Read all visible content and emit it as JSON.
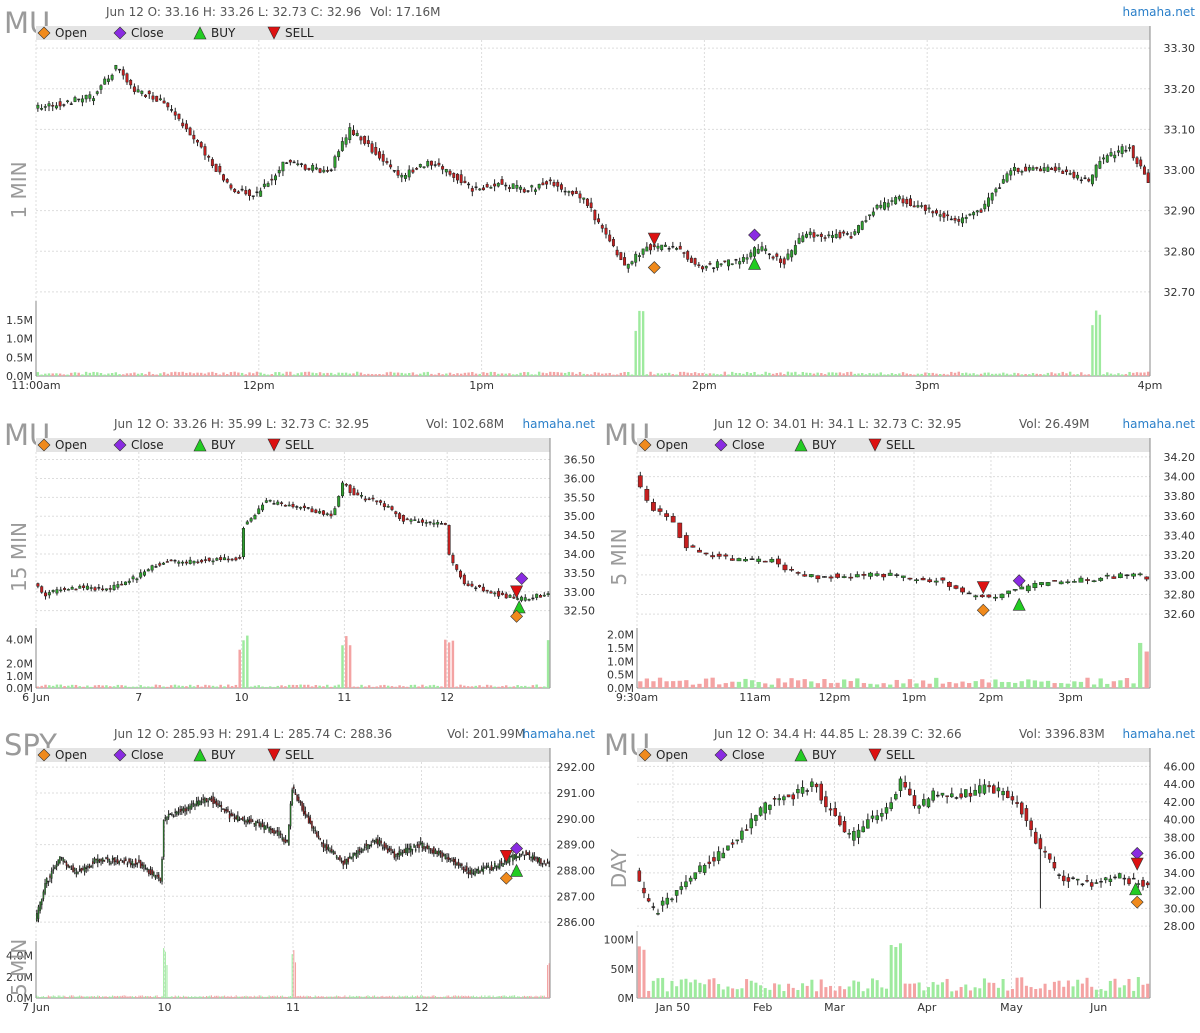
{
  "colors": {
    "up": "#2ea02e",
    "down": "#c51f1f",
    "doji": "#222222",
    "vol_up": "#9eea9e",
    "vol_down": "#f4a3a3",
    "open_marker": "#f08a1c",
    "close_marker": "#8a2be2",
    "buy_marker": "#22cc22",
    "sell_marker": "#dd1111",
    "legend_band": "#e4e4e4",
    "grid": "#dddddd",
    "brand": "#2a7fc9"
  },
  "chart_data": [
    {
      "id": "mu-1min",
      "type": "candlestick",
      "symbol": "MU",
      "timeframe": "1 MIN",
      "info": "Jun 12 O: 33.16 H: 33.26 L: 32.73 C: 32.96",
      "volume_text": "Vol: 17.16M",
      "brand": "hamaha.net",
      "legend": [
        "Open",
        "Close",
        "BUY",
        "SELL"
      ],
      "ylim": [
        32.68,
        33.32
      ],
      "yticks": [
        "33.30",
        "33.20",
        "33.10",
        "33.00",
        "32.90",
        "32.80",
        "32.70"
      ],
      "ytick_values": [
        33.3,
        33.2,
        33.1,
        33.0,
        32.9,
        32.8,
        32.7
      ],
      "vol_ticks": [
        "1.5M",
        "1.0M",
        "0.5M",
        "0.0M"
      ],
      "vol_tick_values": [
        1.5,
        1.0,
        0.5,
        0.0
      ],
      "vol_max": 1.9,
      "xticks": [
        "11:00am",
        "12pm",
        "1pm",
        "2pm",
        "3pm",
        "4pm"
      ],
      "xtick_pos": [
        0,
        0.2,
        0.4,
        0.6,
        0.8,
        1.0
      ],
      "n_bars": 300,
      "anchors": [
        [
          0,
          33.15
        ],
        [
          0.06,
          33.18
        ],
        [
          0.085,
          33.26
        ],
        [
          0.1,
          33.2
        ],
        [
          0.13,
          33.17
        ],
        [
          0.17,
          33.05
        ],
        [
          0.2,
          32.95
        ],
        [
          0.225,
          32.94
        ],
        [
          0.255,
          33.02
        ],
        [
          0.29,
          33.0
        ],
        [
          0.3,
          33.0
        ],
        [
          0.32,
          33.1
        ],
        [
          0.335,
          33.07
        ],
        [
          0.37,
          32.98
        ],
        [
          0.4,
          33.02
        ],
        [
          0.43,
          32.98
        ],
        [
          0.445,
          32.95
        ],
        [
          0.47,
          32.97
        ],
        [
          0.5,
          32.95
        ],
        [
          0.52,
          32.97
        ],
        [
          0.54,
          32.95
        ],
        [
          0.56,
          32.92
        ],
        [
          0.6,
          32.76
        ],
        [
          0.62,
          32.81
        ],
        [
          0.65,
          32.81
        ],
        [
          0.675,
          32.76
        ],
        [
          0.7,
          32.77
        ],
        [
          0.72,
          32.78
        ],
        [
          0.735,
          32.81
        ],
        [
          0.76,
          32.77
        ],
        [
          0.78,
          32.84
        ],
        [
          0.83,
          32.84
        ],
        [
          0.85,
          32.9
        ],
        [
          0.875,
          32.93
        ],
        [
          0.9,
          32.91
        ],
        [
          0.935,
          32.87
        ],
        [
          0.96,
          32.9
        ],
        [
          0.99,
          33.0
        ],
        [
          1.0,
          33.0
        ],
        [
          1.04,
          33.0
        ],
        [
          1.07,
          32.97
        ],
        [
          1.08,
          33.02
        ],
        [
          1.11,
          33.06
        ],
        [
          1.13,
          32.97
        ]
      ],
      "noise": 0.008,
      "spike_at": [
        0.54,
        0.95
      ],
      "vol_base": 0.09,
      "markers": [
        {
          "kind": "sell",
          "x": 0.555,
          "price": 32.83
        },
        {
          "kind": "open",
          "x": 0.555,
          "price": 32.76
        },
        {
          "kind": "close",
          "x": 0.645,
          "price": 32.84
        },
        {
          "kind": "buy",
          "x": 0.645,
          "price": 32.77
        }
      ]
    },
    {
      "id": "mu-15min",
      "type": "candlestick",
      "symbol": "MU",
      "timeframe": "15 MIN",
      "info": "Jun 12 O: 33.26 H: 35.99 L: 32.73 C: 32.95",
      "volume_text": "Vol: 102.68M",
      "brand": "hamaha.net",
      "legend": [
        "Open",
        "Close",
        "BUY",
        "SELL"
      ],
      "ylim": [
        32.2,
        36.7
      ],
      "yticks": [
        "36.50",
        "36.00",
        "35.50",
        "35.00",
        "34.50",
        "34.00",
        "33.50",
        "33.00",
        "32.50"
      ],
      "ytick_values": [
        36.5,
        36.0,
        35.5,
        35.0,
        34.5,
        34.0,
        33.5,
        33.0,
        32.5
      ],
      "vol_ticks": [
        "4.0M",
        "2.0M",
        "1.0M",
        "0.0M"
      ],
      "vol_tick_values": [
        4.0,
        2.0,
        1.0,
        0.0
      ],
      "vol_max": 4.6,
      "xticks": [
        "6 Jun",
        "7",
        "10",
        "11",
        "12"
      ],
      "xtick_pos": [
        0,
        0.2,
        0.4,
        0.6,
        0.8
      ],
      "n_bars": 135,
      "anchors": [
        [
          0,
          33.2
        ],
        [
          0.02,
          32.9
        ],
        [
          0.05,
          33.1
        ],
        [
          0.15,
          33.1
        ],
        [
          0.2,
          33.4
        ],
        [
          0.25,
          33.8
        ],
        [
          0.3,
          33.8
        ],
        [
          0.385,
          33.9
        ],
        [
          0.4,
          33.9
        ],
        [
          0.405,
          34.7
        ],
        [
          0.45,
          35.4
        ],
        [
          0.5,
          35.3
        ],
        [
          0.58,
          35.0
        ],
        [
          0.6,
          35.9
        ],
        [
          0.62,
          35.6
        ],
        [
          0.68,
          35.3
        ],
        [
          0.72,
          34.9
        ],
        [
          0.8,
          34.8
        ],
        [
          0.805,
          34.0
        ],
        [
          0.84,
          33.2
        ],
        [
          0.9,
          32.95
        ],
        [
          0.95,
          32.8
        ],
        [
          1.0,
          32.95
        ]
      ],
      "noise": 0.06,
      "spike_at": [
        0.4,
        0.6,
        0.8,
        0.998
      ],
      "vol_base": 0.22,
      "markers": [
        {
          "kind": "close",
          "x": 0.945,
          "price": 33.35
        },
        {
          "kind": "sell",
          "x": 0.935,
          "price": 33.0
        },
        {
          "kind": "buy",
          "x": 0.94,
          "price": 32.6
        },
        {
          "kind": "open",
          "x": 0.935,
          "price": 32.35
        }
      ]
    },
    {
      "id": "mu-5min",
      "type": "candlestick",
      "symbol": "MU",
      "timeframe": "5 MIN",
      "info": "Jun 12 O: 34.01 H: 34.1 L: 32.73 C: 32.95",
      "volume_text": "Vol: 26.49M",
      "brand": "hamaha.net",
      "legend": [
        "Open",
        "Close",
        "BUY",
        "SELL"
      ],
      "ylim": [
        32.52,
        34.25
      ],
      "yticks": [
        "34.20",
        "34.00",
        "33.80",
        "33.60",
        "33.40",
        "33.20",
        "33.00",
        "32.80",
        "32.60"
      ],
      "ytick_values": [
        34.2,
        34.0,
        33.8,
        33.6,
        33.4,
        33.2,
        33.0,
        32.8,
        32.6
      ],
      "vol_ticks": [
        "2.0M",
        "1.5M",
        "1.0M",
        "0.5M",
        "0.0M"
      ],
      "vol_tick_values": [
        2.0,
        1.5,
        1.0,
        0.5,
        0.0
      ],
      "vol_max": 2.1,
      "xticks": [
        "9:30am",
        "11am",
        "12pm",
        "1pm",
        "2pm",
        "3pm"
      ],
      "xtick_pos": [
        0,
        0.23,
        0.385,
        0.54,
        0.69,
        0.845
      ],
      "n_bars": 78,
      "anchors": [
        [
          0,
          34.0
        ],
        [
          0.03,
          33.7
        ],
        [
          0.07,
          33.6
        ],
        [
          0.1,
          33.3
        ],
        [
          0.15,
          33.2
        ],
        [
          0.2,
          33.15
        ],
        [
          0.27,
          33.15
        ],
        [
          0.3,
          33.05
        ],
        [
          0.35,
          32.98
        ],
        [
          0.45,
          33.0
        ],
        [
          0.5,
          33.0
        ],
        [
          0.55,
          32.95
        ],
        [
          0.6,
          32.95
        ],
        [
          0.65,
          32.8
        ],
        [
          0.7,
          32.78
        ],
        [
          0.75,
          32.85
        ],
        [
          0.8,
          32.92
        ],
        [
          0.88,
          32.95
        ],
        [
          0.96,
          33.0
        ],
        [
          1.0,
          32.98
        ]
      ],
      "noise": 0.025,
      "spike_at": [
        0.99
      ],
      "vol_base": 0.3,
      "markers": [
        {
          "kind": "sell",
          "x": 0.675,
          "price": 32.87
        },
        {
          "kind": "open",
          "x": 0.675,
          "price": 32.64
        },
        {
          "kind": "close",
          "x": 0.745,
          "price": 32.94
        },
        {
          "kind": "buy",
          "x": 0.745,
          "price": 32.7
        }
      ]
    },
    {
      "id": "spy-5min",
      "type": "candlestick",
      "symbol": "SPY",
      "timeframe": "5 MIN",
      "info": "Jun 12 O: 285.93 H: 291.4 L: 285.74 C: 288.36",
      "volume_text": "Vol: 201.99M",
      "brand": "hamaha.net",
      "legend": [
        "Open",
        "Close",
        "BUY",
        "SELL"
      ],
      "ylim": [
        285.5,
        292.2
      ],
      "yticks": [
        "292.00",
        "291.00",
        "290.00",
        "289.00",
        "288.00",
        "287.00",
        "286.00"
      ],
      "ytick_values": [
        292,
        291,
        290,
        289,
        288,
        287,
        286
      ],
      "vol_ticks": [
        "4.0M",
        "2.0M",
        "0.0M"
      ],
      "vol_tick_values": [
        4.0,
        2.0,
        0.0
      ],
      "vol_max": 5.0,
      "xticks": [
        "7 Jun",
        "10",
        "11",
        "12"
      ],
      "xtick_pos": [
        0,
        0.25,
        0.5,
        0.75
      ],
      "n_bars": 312,
      "anchors": [
        [
          0,
          286.0
        ],
        [
          0.02,
          287.5
        ],
        [
          0.05,
          288.5
        ],
        [
          0.08,
          287.9
        ],
        [
          0.12,
          288.4
        ],
        [
          0.2,
          288.3
        ],
        [
          0.245,
          287.6
        ],
        [
          0.25,
          290.0
        ],
        [
          0.28,
          290.3
        ],
        [
          0.34,
          290.8
        ],
        [
          0.38,
          290.1
        ],
        [
          0.43,
          289.8
        ],
        [
          0.47,
          289.5
        ],
        [
          0.49,
          289.0
        ],
        [
          0.5,
          291.2
        ],
        [
          0.53,
          290.0
        ],
        [
          0.56,
          289.0
        ],
        [
          0.6,
          288.3
        ],
        [
          0.66,
          289.2
        ],
        [
          0.7,
          288.6
        ],
        [
          0.75,
          289.0
        ],
        [
          0.8,
          288.5
        ],
        [
          0.85,
          287.9
        ],
        [
          0.9,
          288.2
        ],
        [
          0.95,
          288.7
        ],
        [
          1.0,
          288.2
        ]
      ],
      "noise": 0.12,
      "spike_at": [
        0.25,
        0.5,
        0.998
      ],
      "vol_base": 0.2,
      "markers": [
        {
          "kind": "sell",
          "x": 0.915,
          "price": 288.55
        },
        {
          "kind": "close",
          "x": 0.935,
          "price": 288.85
        },
        {
          "kind": "buy",
          "x": 0.935,
          "price": 288.0
        },
        {
          "kind": "open",
          "x": 0.915,
          "price": 287.7
        }
      ]
    },
    {
      "id": "mu-day",
      "type": "candlestick",
      "symbol": "MU",
      "timeframe": "DAY",
      "info": "Jun 12 O: 34.4 H: 44.85 L: 28.39 C: 32.66",
      "volume_text": "Vol: 3396.83M",
      "brand": "hamaha.net",
      "legend": [
        "Open",
        "Close",
        "BUY",
        "SELL"
      ],
      "ylim": [
        27.0,
        46.5
      ],
      "yticks": [
        "46.00",
        "44.00",
        "42.00",
        "40.00",
        "38.00",
        "36.00",
        "34.00",
        "32.00",
        "30.00",
        "28.00"
      ],
      "ytick_values": [
        46,
        44,
        42,
        40,
        38,
        36,
        34,
        32,
        30,
        28
      ],
      "vol_ticks": [
        "100M",
        "50M",
        "0M"
      ],
      "vol_tick_values": [
        100,
        50,
        0
      ],
      "vol_max": 108,
      "xticks": [
        "Jan 50",
        "Feb",
        "Mar",
        "Apr",
        "May",
        "Jun"
      ],
      "xtick_pos": [
        0.07,
        0.245,
        0.385,
        0.565,
        0.73,
        0.9
      ],
      "n_bars": 110,
      "anchors": [
        [
          0,
          34.0
        ],
        [
          0.02,
          31.0
        ],
        [
          0.04,
          29.5
        ],
        [
          0.06,
          31.0
        ],
        [
          0.09,
          32.0
        ],
        [
          0.12,
          34.0
        ],
        [
          0.16,
          36.0
        ],
        [
          0.2,
          38.0
        ],
        [
          0.23,
          40.0
        ],
        [
          0.26,
          42.0
        ],
        [
          0.3,
          42.5
        ],
        [
          0.35,
          44.0
        ],
        [
          0.38,
          41.0
        ],
        [
          0.42,
          38.0
        ],
        [
          0.46,
          40.0
        ],
        [
          0.5,
          42.0
        ],
        [
          0.52,
          44.5
        ],
        [
          0.55,
          41.0
        ],
        [
          0.58,
          43.0
        ],
        [
          0.62,
          42.5
        ],
        [
          0.68,
          43.5
        ],
        [
          0.72,
          43.0
        ],
        [
          0.75,
          41.5
        ],
        [
          0.78,
          38.0
        ],
        [
          0.82,
          34.0
        ],
        [
          0.86,
          33.0
        ],
        [
          0.9,
          32.5
        ],
        [
          0.94,
          34.0
        ],
        [
          0.97,
          33.0
        ],
        [
          1.0,
          32.5
        ]
      ],
      "noise": 0.5,
      "spike_at": [
        0.0,
        0.5
      ],
      "vol_base": 28,
      "long_wick": {
        "x": 0.78,
        "low": 30.0
      },
      "markers": [
        {
          "kind": "close",
          "x": 0.975,
          "price": 36.2
        },
        {
          "kind": "sell",
          "x": 0.975,
          "price": 35.0
        },
        {
          "kind": "buy",
          "x": 0.972,
          "price": 32.2
        },
        {
          "kind": "open",
          "x": 0.975,
          "price": 30.7
        }
      ]
    }
  ]
}
